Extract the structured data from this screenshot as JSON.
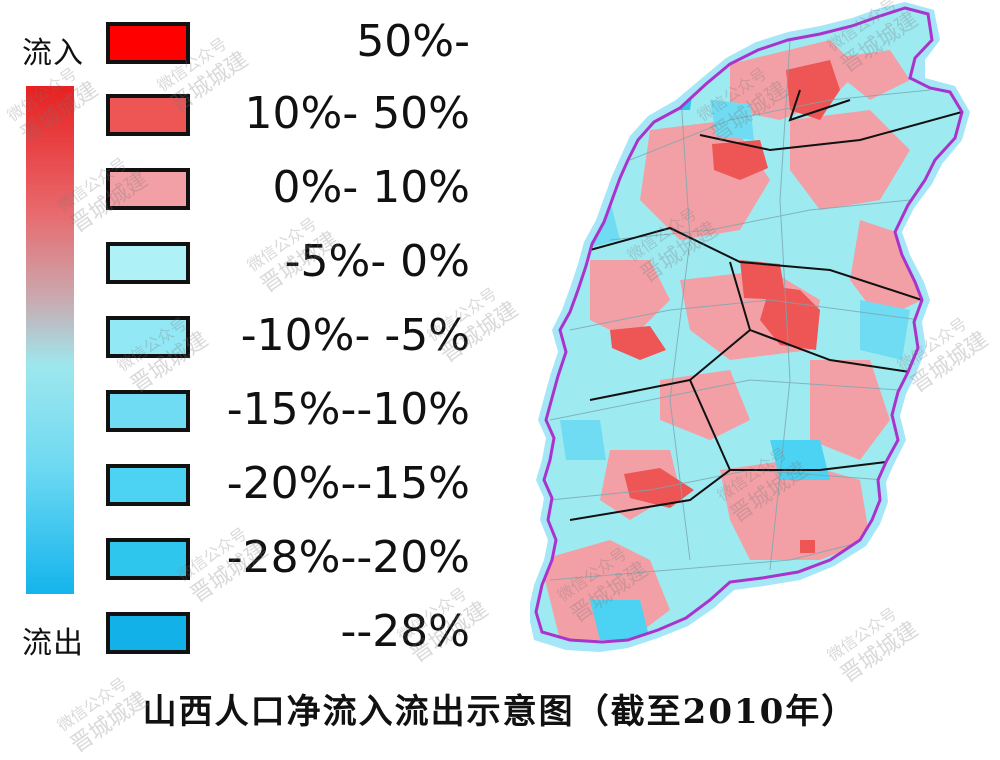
{
  "legend": {
    "top_label": "流入",
    "bottom_label": "流出",
    "items": [
      {
        "label": "50%-",
        "color": "#ff0000"
      },
      {
        "label": "10%- 50%",
        "color": "#ee5555"
      },
      {
        "label": "0%- 10%",
        "color": "#f2a0a6"
      },
      {
        "label": "-5%- 0%",
        "color": "#aef2f8"
      },
      {
        "label": "-10%- -5%",
        "color": "#93e8f6"
      },
      {
        "label": "-15%--10%",
        "color": "#6fdcf3"
      },
      {
        "label": "-20%--15%",
        "color": "#4cd2f2"
      },
      {
        "label": "-28%--20%",
        "color": "#2fc6ee"
      },
      {
        "label": "--28%",
        "color": "#12b1e8"
      }
    ]
  },
  "map": {
    "outline_color": "#aa33cc"
  },
  "title": "山西人口净流入流出示意图（截至2010年）",
  "watermark": {
    "line1": "微信公众号",
    "line2": "晋城城建"
  }
}
